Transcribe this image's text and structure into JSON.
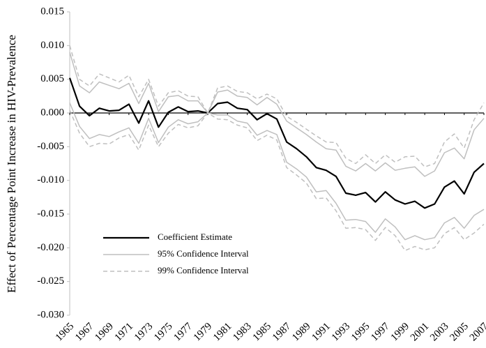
{
  "chart_data": {
    "type": "line",
    "y_label": "Effect of Percentage Point Increase in HIV-Prevalence",
    "x": [
      1965,
      1966,
      1967,
      1968,
      1969,
      1970,
      1971,
      1972,
      1973,
      1974,
      1975,
      1976,
      1977,
      1978,
      1979,
      1980,
      1981,
      1982,
      1983,
      1984,
      1985,
      1986,
      1987,
      1988,
      1989,
      1990,
      1991,
      1992,
      1993,
      1994,
      1995,
      1996,
      1997,
      1998,
      1999,
      2000,
      2001,
      2002,
      2003,
      2004,
      2005,
      2006,
      2007
    ],
    "xlim": [
      1965,
      2007
    ],
    "xticks": [
      1965,
      1967,
      1969,
      1971,
      1973,
      1975,
      1977,
      1979,
      1981,
      1983,
      1985,
      1987,
      1989,
      1991,
      1993,
      1995,
      1997,
      1999,
      2001,
      2003,
      2005,
      2007
    ],
    "ylim": [
      -0.03,
      0.015
    ],
    "yticks": [
      {
        "value": -0.03,
        "label": "-0.030"
      },
      {
        "value": -0.025,
        "label": "-0.025"
      },
      {
        "value": -0.02,
        "label": "-0.020"
      },
      {
        "value": -0.015,
        "label": "-0.015"
      },
      {
        "value": -0.01,
        "label": "-0.010"
      },
      {
        "value": -0.005,
        "label": "-0.005"
      },
      {
        "value": 0,
        "label": "0.000"
      },
      {
        "value": 0.005,
        "label": "0.005"
      },
      {
        "value": 0.01,
        "label": "0.010"
      },
      {
        "value": 0.015,
        "label": "0.015"
      }
    ],
    "grid": false,
    "series": [
      {
        "name": "Coefficient Estimate",
        "color": "#000000",
        "dash": false,
        "width": 2.2,
        "values": [
          0.0052,
          0.001,
          -0.0004,
          0.0007,
          0.0003,
          0.0004,
          0.0013,
          -0.0015,
          0.0018,
          -0.0021,
          0.0001,
          0.0009,
          0.0002,
          0.0003,
          0.0,
          0.0014,
          0.0016,
          0.0007,
          0.0005,
          -0.001,
          -0.0001,
          -0.0009,
          -0.0043,
          -0.0053,
          -0.0065,
          -0.0081,
          -0.0085,
          -0.0094,
          -0.0119,
          -0.0122,
          -0.0118,
          -0.0132,
          -0.0117,
          -0.0129,
          -0.0135,
          -0.0131,
          -0.0141,
          -0.0135,
          -0.011,
          -0.0101,
          -0.012,
          -0.0088,
          -0.0075
        ]
      },
      {
        "name": "95% Confidence Interval",
        "color": "#bfbfbf",
        "dash": false,
        "width": 1.5,
        "upper": [
          0.009,
          0.004,
          0.003,
          0.0046,
          0.0041,
          0.0036,
          0.0044,
          0.0014,
          0.0044,
          0.0002,
          0.0024,
          0.0026,
          0.0018,
          0.0018,
          0.0,
          0.0031,
          0.0034,
          0.0025,
          0.0023,
          0.0012,
          0.0023,
          0.0013,
          -0.0012,
          -0.0022,
          -0.0032,
          -0.0043,
          -0.0053,
          -0.0055,
          -0.0079,
          -0.0086,
          -0.0075,
          -0.0086,
          -0.0074,
          -0.0085,
          -0.0082,
          -0.008,
          -0.0094,
          -0.0086,
          -0.0059,
          -0.0052,
          -0.0068,
          -0.0025,
          -0.0008
        ],
        "lower": [
          0.0015,
          -0.002,
          -0.0038,
          -0.0032,
          -0.0035,
          -0.0028,
          -0.0022,
          -0.0045,
          -0.0008,
          -0.0044,
          -0.0021,
          -0.001,
          -0.0016,
          -0.0013,
          0.0,
          -0.0003,
          -0.0003,
          -0.0012,
          -0.0015,
          -0.0033,
          -0.0026,
          -0.0032,
          -0.0073,
          -0.0083,
          -0.0095,
          -0.0117,
          -0.0115,
          -0.0134,
          -0.0159,
          -0.0158,
          -0.0161,
          -0.0177,
          -0.0157,
          -0.0169,
          -0.0188,
          -0.0182,
          -0.0188,
          -0.0185,
          -0.0163,
          -0.0155,
          -0.0171,
          -0.0152,
          -0.0143
        ]
      },
      {
        "name": "99% Confidence Interval",
        "color": "#bfbfbf",
        "dash": true,
        "width": 1.5,
        "upper": [
          0.01,
          0.005,
          0.004,
          0.0058,
          0.0052,
          0.0046,
          0.0056,
          0.0024,
          0.005,
          0.001,
          0.003,
          0.0033,
          0.0025,
          0.0024,
          0.0,
          0.0037,
          0.004,
          0.0032,
          0.003,
          0.0021,
          0.0028,
          0.0021,
          -0.0005,
          -0.0014,
          -0.0024,
          -0.0034,
          -0.0043,
          -0.0044,
          -0.0067,
          -0.0075,
          -0.0062,
          -0.0075,
          -0.0062,
          -0.0073,
          -0.0065,
          -0.0064,
          -0.008,
          -0.0075,
          -0.0043,
          -0.0031,
          -0.0052,
          -0.001,
          0.0015
        ],
        "lower": [
          0.0004,
          -0.003,
          -0.005,
          -0.0045,
          -0.0046,
          -0.0037,
          -0.0032,
          -0.0055,
          -0.0018,
          -0.005,
          -0.003,
          -0.0017,
          -0.0022,
          -0.0019,
          0.0,
          -0.0009,
          -0.001,
          -0.0018,
          -0.0022,
          -0.0041,
          -0.0033,
          -0.004,
          -0.0081,
          -0.0092,
          -0.0104,
          -0.0127,
          -0.0126,
          -0.0145,
          -0.0171,
          -0.017,
          -0.0173,
          -0.0189,
          -0.017,
          -0.0182,
          -0.0204,
          -0.0198,
          -0.0203,
          -0.02,
          -0.0179,
          -0.017,
          -0.0188,
          -0.0178,
          -0.0165
        ]
      }
    ]
  }
}
